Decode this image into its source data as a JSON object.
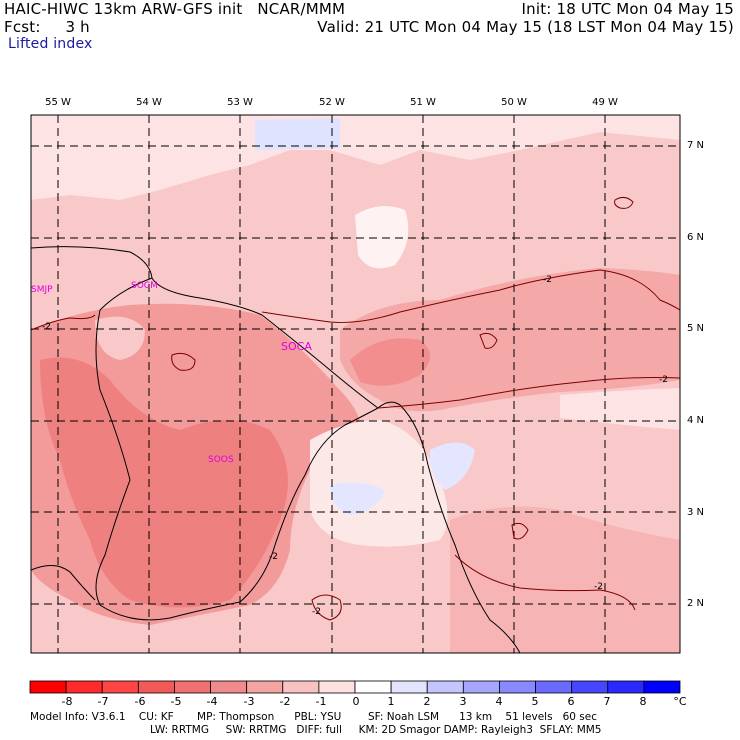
{
  "header": {
    "line1_left": "HAIC-HIWC 13km ARW-GFS init   NCAR/MMM",
    "line1_right": "Init: 18 UTC Mon 04 May 15",
    "line2_left": "Fcst:     3 h",
    "line2_right": "Valid: 21 UTC Mon 04 May 15 (18 LST Mon 04 May 15)",
    "field_name": "Lifted index"
  },
  "map": {
    "lon_labels": [
      "55 W",
      "54 W",
      "53 W",
      "52 W",
      "51 W",
      "50 W",
      "49 W"
    ],
    "lat_labels": [
      "7 N",
      "6 N",
      "5 N",
      "4 N",
      "3 N",
      "2 N"
    ],
    "stations": [
      "SMJP",
      "SOCM",
      "SOCA",
      "SOOS"
    ],
    "contour_label": "-2"
  },
  "colorbar": {
    "labels": [
      "-8",
      "-7",
      "-6",
      "-5",
      "-4",
      "-3",
      "-2",
      "-1",
      "0",
      "1",
      "2",
      "3",
      "4",
      "5",
      "6",
      "7",
      "8"
    ],
    "unit": "°C",
    "colors": [
      "#ff0000",
      "#ff2a2a",
      "#ff4646",
      "#f25a5a",
      "#ef7070",
      "#f18a8a",
      "#f5a4a4",
      "#f9c2c2",
      "#fde0e0",
      "#ffffff",
      "#e4e4ff",
      "#c4c4ff",
      "#a6a6ff",
      "#8888ff",
      "#6a6aff",
      "#4646ff",
      "#2a2aff",
      "#0000ff"
    ]
  },
  "model_info": {
    "line1": "Model Info: V3.6.1    CU: KF       MP: Thompson      PBL: YSU        SF: Noah LSM      13 km    51 levels   60 sec",
    "line2": "LW: RRTMG     SW: RRTMG   DIFF: full     KM: 2D Smagor DAMP: Rayleigh3  SFLAY: MM5"
  }
}
